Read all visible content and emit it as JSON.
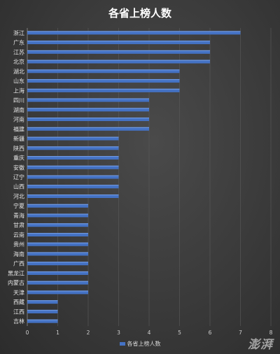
{
  "chart_data": {
    "type": "bar",
    "orientation": "horizontal",
    "title": "各省上榜人数",
    "categories": [
      "浙江",
      "广东",
      "江苏",
      "北京",
      "湖北",
      "山东",
      "上海",
      "四川",
      "湖南",
      "河南",
      "福建",
      "新疆",
      "陕西",
      "重庆",
      "安徽",
      "辽宁",
      "山西",
      "河北",
      "宁夏",
      "青海",
      "甘肃",
      "云南",
      "贵州",
      "海南",
      "广西",
      "黑龙江",
      "内蒙古",
      "天津",
      "西藏",
      "江西",
      "吉林"
    ],
    "series": [
      {
        "name": "各省上榜人数",
        "values": [
          7,
          6,
          6,
          6,
          5,
          5,
          5,
          4,
          4,
          4,
          4,
          3,
          3,
          3,
          3,
          3,
          3,
          3,
          2,
          2,
          2,
          2,
          2,
          2,
          2,
          2,
          2,
          2,
          1,
          1,
          1
        ]
      }
    ],
    "xlim": [
      0,
      8
    ],
    "xticks": [
      "0",
      "1",
      "2",
      "3",
      "4",
      "5",
      "6",
      "7",
      "8"
    ],
    "grid": true,
    "legend_position": "bottom",
    "bar_color": "#4472c4"
  },
  "watermark": "澎湃"
}
